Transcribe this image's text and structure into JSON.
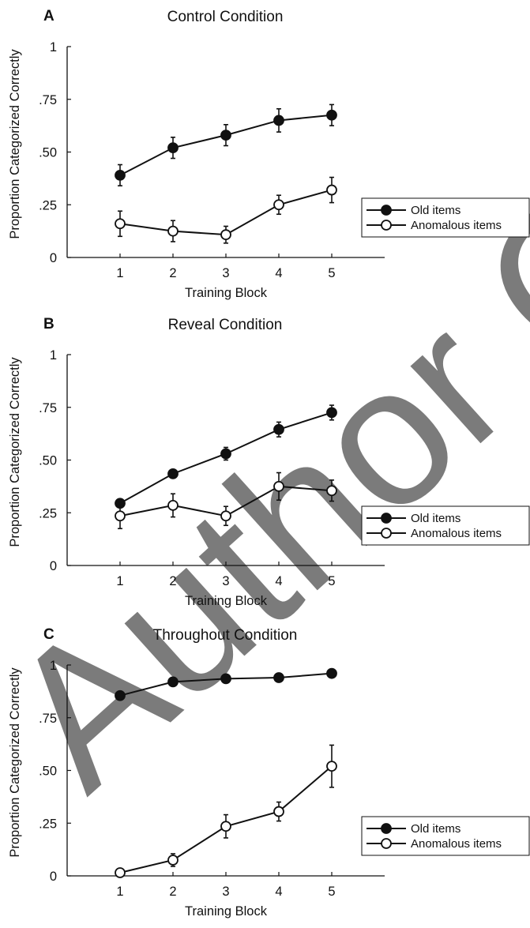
{
  "chart_data": [
    {
      "type": "line",
      "panel": "A",
      "title": "Control Condition",
      "xlabel": "Training Block",
      "ylabel": "Proportion Categorized Correctly",
      "x": [
        1,
        2,
        3,
        4,
        5
      ],
      "xlim": [
        0,
        6
      ],
      "ylim": [
        0,
        1
      ],
      "yticks": [
        0,
        0.25,
        0.5,
        0.75,
        1
      ],
      "ytick_labels": [
        "0",
        ".25",
        ".50",
        ".75",
        "1"
      ],
      "xtick_labels": [
        "1",
        "2",
        "3",
        "4",
        "5"
      ],
      "legend_position": "right",
      "series": [
        {
          "name": "Old items",
          "marker": "filled",
          "values": [
            0.39,
            0.52,
            0.58,
            0.65,
            0.675
          ],
          "errors": [
            0.05,
            0.05,
            0.05,
            0.055,
            0.05
          ]
        },
        {
          "name": "Anomalous items",
          "marker": "open",
          "values": [
            0.16,
            0.125,
            0.108,
            0.25,
            0.32
          ],
          "errors": [
            0.06,
            0.05,
            0.04,
            0.045,
            0.06
          ]
        }
      ]
    },
    {
      "type": "line",
      "panel": "B",
      "title": "Reveal Condition",
      "xlabel": "Training Block",
      "ylabel": "Proportion Categorized Correctly",
      "x": [
        1,
        2,
        3,
        4,
        5
      ],
      "xlim": [
        0,
        6
      ],
      "ylim": [
        0,
        1
      ],
      "yticks": [
        0,
        0.25,
        0.5,
        0.75,
        1
      ],
      "ytick_labels": [
        "0",
        ".25",
        ".50",
        ".75",
        "1"
      ],
      "xtick_labels": [
        "1",
        "2",
        "3",
        "4",
        "5"
      ],
      "legend_position": "right",
      "series": [
        {
          "name": "Old items",
          "marker": "filled",
          "values": [
            0.295,
            0.435,
            0.53,
            0.645,
            0.725
          ],
          "errors": [
            0.02,
            0.02,
            0.03,
            0.035,
            0.035
          ]
        },
        {
          "name": "Anomalous items",
          "marker": "open",
          "values": [
            0.235,
            0.285,
            0.235,
            0.375,
            0.355
          ],
          "errors": [
            0.06,
            0.055,
            0.045,
            0.065,
            0.05
          ]
        }
      ]
    },
    {
      "type": "line",
      "panel": "C",
      "title": "Throughout Condition",
      "xlabel": "Training Block",
      "ylabel": "Proportion Categorized Correctly",
      "x": [
        1,
        2,
        3,
        4,
        5
      ],
      "xlim": [
        0,
        6
      ],
      "ylim": [
        0,
        1
      ],
      "yticks": [
        0,
        0.25,
        0.5,
        0.75,
        1
      ],
      "ytick_labels": [
        "0",
        ".25",
        ".50",
        ".75",
        "1"
      ],
      "xtick_labels": [
        "1",
        "2",
        "3",
        "4",
        "5"
      ],
      "legend_position": "right",
      "series": [
        {
          "name": "Old items",
          "marker": "filled",
          "values": [
            0.855,
            0.92,
            0.935,
            0.94,
            0.96
          ],
          "errors": [
            0,
            0,
            0,
            0,
            0
          ]
        },
        {
          "name": "Anomalous items",
          "marker": "open",
          "values": [
            0.015,
            0.075,
            0.235,
            0.305,
            0.52
          ],
          "errors": [
            0.01,
            0.03,
            0.055,
            0.045,
            0.1
          ]
        }
      ]
    }
  ],
  "watermark": {
    "text": "Author Copy"
  },
  "colors": {
    "ink": "#111111",
    "open_fill": "#ffffff",
    "watermark": "#dcdcdc"
  }
}
